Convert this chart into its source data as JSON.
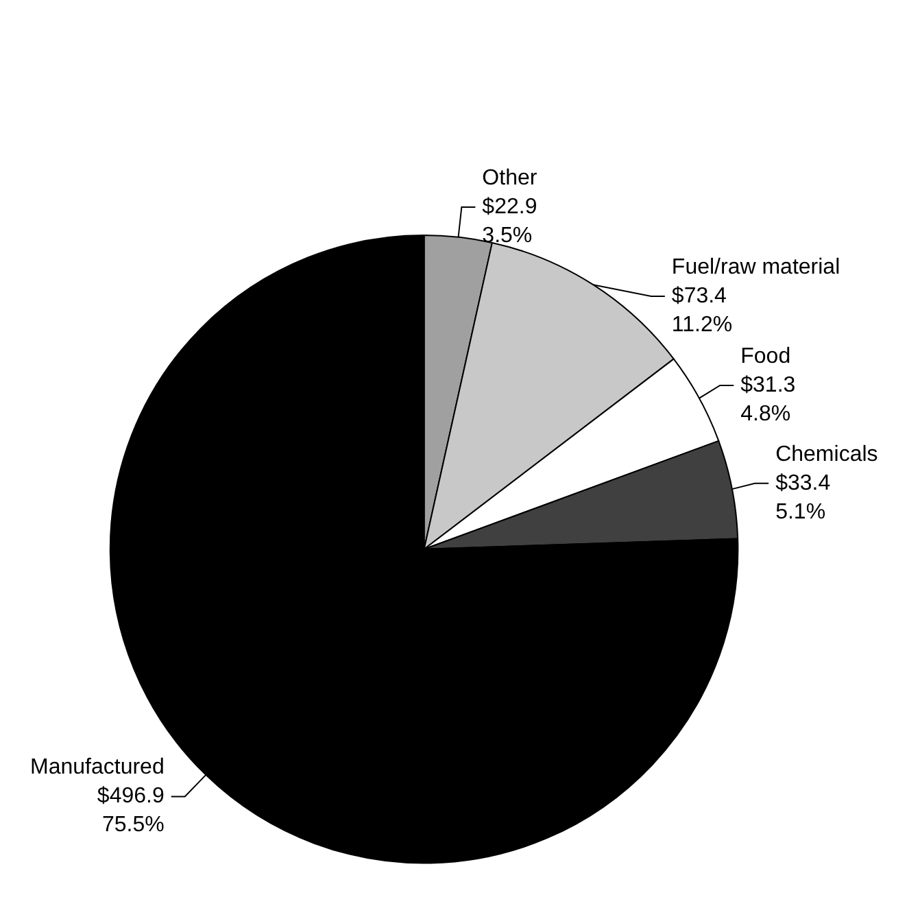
{
  "chart_data": {
    "type": "pie",
    "categories": [
      "Other",
      "Fuel/raw material",
      "Food",
      "Chemicals",
      "Manufactured"
    ],
    "values": [
      22.9,
      73.4,
      31.3,
      33.4,
      496.9
    ],
    "value_labels": [
      "$22.9\n3.5%",
      "$73.4\n11.2%",
      "$31.3\n4.8%",
      "$33.4\n5.1%",
      "$496.9\n75.5%"
    ],
    "colors": [
      "#a0a0a0",
      "#c8c8c8",
      "#ffffff",
      "#404040",
      "#000000"
    ],
    "legend": false
  }
}
